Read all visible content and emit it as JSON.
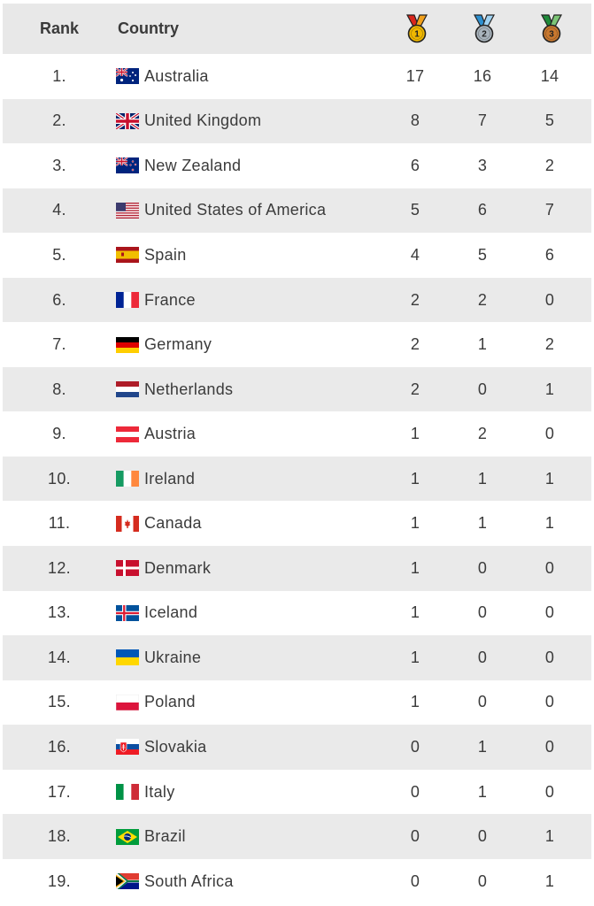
{
  "header": {
    "rank": "Rank",
    "country": "Country",
    "medals": [
      "gold-medal-icon",
      "silver-medal-icon",
      "bronze-medal-icon"
    ],
    "medal_numbers": [
      "1",
      "2",
      "3"
    ]
  },
  "colors": {
    "gold": "#f0b800",
    "silver": "#a9b4bd",
    "bronze": "#c9782e",
    "header_bg": "#e8e8e8",
    "stripe_bg": "#eaeaea"
  },
  "rows": [
    {
      "rank": "1.",
      "country": "Australia",
      "flag": "australia-flag-icon",
      "gold": "17",
      "silver": "16",
      "bronze": "14"
    },
    {
      "rank": "2.",
      "country": "United Kingdom",
      "flag": "united-kingdom-flag-icon",
      "gold": "8",
      "silver": "7",
      "bronze": "5"
    },
    {
      "rank": "3.",
      "country": "New Zealand",
      "flag": "new-zealand-flag-icon",
      "gold": "6",
      "silver": "3",
      "bronze": "2"
    },
    {
      "rank": "4.",
      "country": "United States of America",
      "flag": "usa-flag-icon",
      "gold": "5",
      "silver": "6",
      "bronze": "7"
    },
    {
      "rank": "5.",
      "country": "Spain",
      "flag": "spain-flag-icon",
      "gold": "4",
      "silver": "5",
      "bronze": "6"
    },
    {
      "rank": "6.",
      "country": "France",
      "flag": "france-flag-icon",
      "gold": "2",
      "silver": "2",
      "bronze": "0"
    },
    {
      "rank": "7.",
      "country": "Germany",
      "flag": "germany-flag-icon",
      "gold": "2",
      "silver": "1",
      "bronze": "2"
    },
    {
      "rank": "8.",
      "country": "Netherlands",
      "flag": "netherlands-flag-icon",
      "gold": "2",
      "silver": "0",
      "bronze": "1"
    },
    {
      "rank": "9.",
      "country": "Austria",
      "flag": "austria-flag-icon",
      "gold": "1",
      "silver": "2",
      "bronze": "0"
    },
    {
      "rank": "10.",
      "country": "Ireland",
      "flag": "ireland-flag-icon",
      "gold": "1",
      "silver": "1",
      "bronze": "1"
    },
    {
      "rank": "11.",
      "country": "Canada",
      "flag": "canada-flag-icon",
      "gold": "1",
      "silver": "1",
      "bronze": "1"
    },
    {
      "rank": "12.",
      "country": "Denmark",
      "flag": "denmark-flag-icon",
      "gold": "1",
      "silver": "0",
      "bronze": "0"
    },
    {
      "rank": "13.",
      "country": "Iceland",
      "flag": "iceland-flag-icon",
      "gold": "1",
      "silver": "0",
      "bronze": "0"
    },
    {
      "rank": "14.",
      "country": "Ukraine",
      "flag": "ukraine-flag-icon",
      "gold": "1",
      "silver": "0",
      "bronze": "0"
    },
    {
      "rank": "15.",
      "country": "Poland",
      "flag": "poland-flag-icon",
      "gold": "1",
      "silver": "0",
      "bronze": "0"
    },
    {
      "rank": "16.",
      "country": "Slovakia",
      "flag": "slovakia-flag-icon",
      "gold": "0",
      "silver": "1",
      "bronze": "0"
    },
    {
      "rank": "17.",
      "country": "Italy",
      "flag": "italy-flag-icon",
      "gold": "0",
      "silver": "1",
      "bronze": "0"
    },
    {
      "rank": "18.",
      "country": "Brazil",
      "flag": "brazil-flag-icon",
      "gold": "0",
      "silver": "0",
      "bronze": "1"
    },
    {
      "rank": "19.",
      "country": "South Africa",
      "flag": "south-africa-flag-icon",
      "gold": "0",
      "silver": "0",
      "bronze": "1"
    }
  ]
}
